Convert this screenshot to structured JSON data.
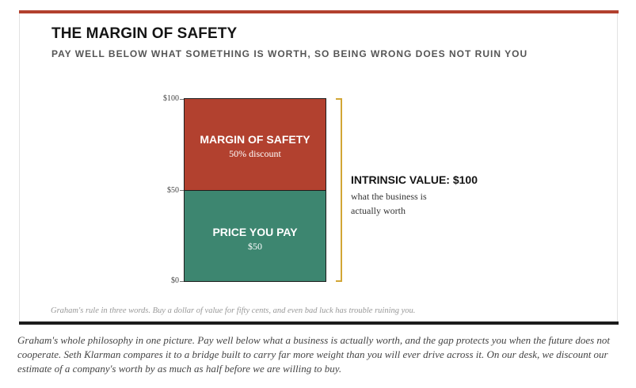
{
  "figure": {
    "title": "THE MARGIN OF SAFETY",
    "subtitle": "PAY WELL BELOW WHAT SOMETHING IS WORTH, SO BEING WRONG DOES NOT RUIN YOU",
    "note": "Graham's rule in three words. Buy a dollar of value for fifty cents, and even bad luck has trouble ruining you.",
    "colors": {
      "accent": "#b2402e",
      "margin": "#b2412f",
      "price": "#3d8670",
      "bracket": "#d2a635",
      "rule": "#1c1c1c"
    }
  },
  "axis": {
    "ticks": [
      "$100",
      "$50",
      "$0"
    ]
  },
  "segments": {
    "margin": {
      "title": "MARGIN OF SAFETY",
      "detail": "50% discount",
      "value": 50
    },
    "price": {
      "title": "PRICE YOU PAY",
      "detail": "$50",
      "value": 50
    }
  },
  "intrinsic": {
    "title": "INTRINSIC VALUE: $100",
    "description": "what the business is actually worth"
  },
  "caption": "Graham's whole philosophy in one picture. Pay well below what a business is actually worth, and the gap protects you when the future does not cooperate. Seth Klarman compares it to a bridge built to carry far more weight than you will ever drive across it. On our desk, we discount our estimate of a company's worth by as much as half before we are willing to buy."
}
